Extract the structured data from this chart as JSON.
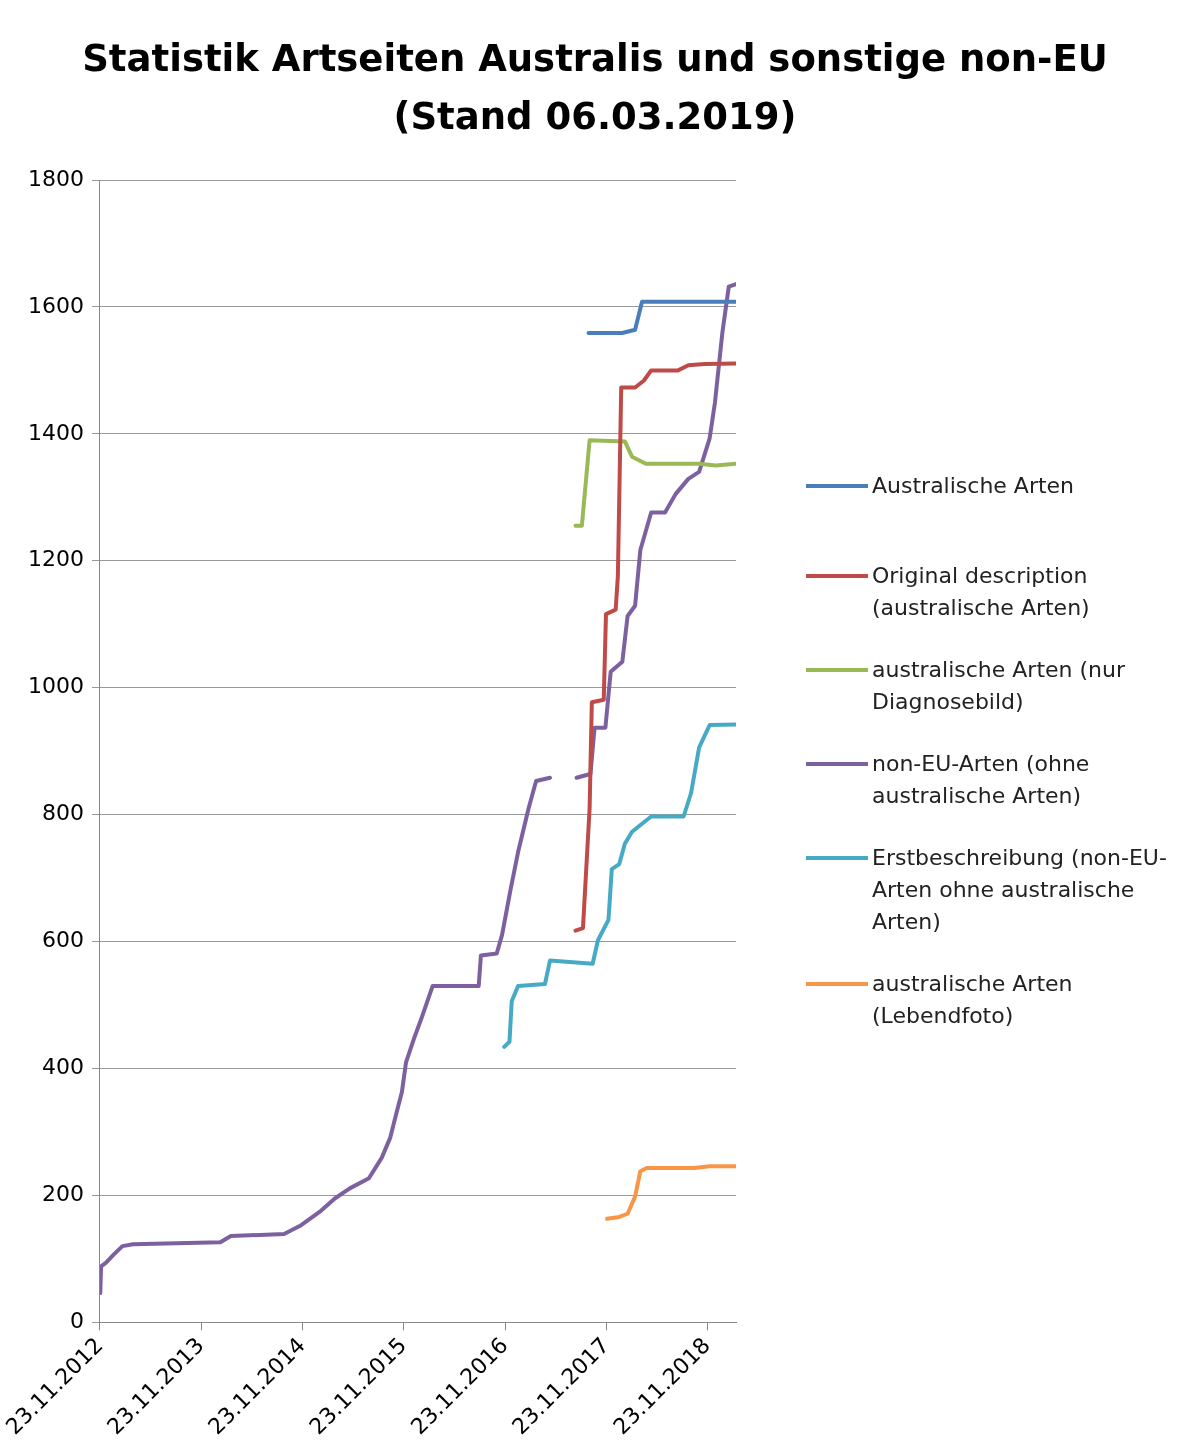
{
  "chart_data": {
    "type": "line",
    "title": "Statistik Artseiten Australis und sonstige non-EU (Stand 06.03.2019)",
    "xlim": [
      "2012-11-23",
      "2019-03-06"
    ],
    "xticks": [
      {
        "value": "2012-11-23",
        "label": "23.11.2012"
      },
      {
        "value": "2013-11-23",
        "label": "23.11.2013"
      },
      {
        "value": "2014-11-23",
        "label": "23.11.2014"
      },
      {
        "value": "2015-11-23",
        "label": "23.11.2015"
      },
      {
        "value": "2016-11-23",
        "label": "23.11.2016"
      },
      {
        "value": "2017-11-23",
        "label": "23.11.2017"
      },
      {
        "value": "2018-11-23",
        "label": "23.11.2018"
      }
    ],
    "ylim": [
      0,
      1800
    ],
    "yticks": [
      0,
      200,
      400,
      600,
      800,
      1000,
      1200,
      1400,
      1600,
      1800
    ],
    "grid": "y",
    "legend": "right",
    "marker": "none",
    "line_style": "solid",
    "series": [
      {
        "name": "Australische Arten",
        "color": "#4a7ebb",
        "x": [
          "2017-09-20",
          "2018-01-20",
          "2018-03-07",
          "2018-04-01",
          "2019-03-06"
        ],
        "values": [
          1559,
          1559,
          1564,
          1608,
          1608
        ]
      },
      {
        "name": "Original description (australische Arten)",
        "color": "#be4b48",
        "x": [
          "2017-08-04",
          "2017-08-31",
          "2017-09-24",
          "2017-10-02",
          "2017-11-14",
          "2017-11-22",
          "2017-12-27",
          "2018-01-04",
          "2018-01-16",
          "2018-03-07",
          "2018-04-08",
          "2018-05-04",
          "2018-08-09",
          "2018-09-15",
          "2018-11-13",
          "2019-03-06"
        ],
        "values": [
          617,
          621,
          810,
          977,
          981,
          1116,
          1123,
          1177,
          1473,
          1473,
          1484,
          1500,
          1500,
          1508,
          1510,
          1511
        ]
      },
      {
        "name": "australische Arten (nur Diagnosebild)",
        "color": "#98b954",
        "x": [
          "2017-08-04",
          "2017-08-27",
          "2017-09-24",
          "2018-01-29",
          "2018-02-24",
          "2018-04-15",
          "2018-10-24",
          "2018-12-24",
          "2019-03-06"
        ],
        "values": [
          1255,
          1255,
          1390,
          1388,
          1364,
          1353,
          1353,
          1350,
          1353
        ]
      },
      {
        "name": "non-EU-Arten (ohne australische Arten)",
        "color": "#7d60a0",
        "x": [
          "2012-11-24",
          "2012-11-27",
          "2012-12-15",
          "2013-01-12",
          "2013-02-12",
          "2013-03-22",
          "2014-01-31",
          "2014-03-10",
          "2014-09-18",
          "2014-11-15",
          "2015-01-30",
          "2015-03-20",
          "2015-05-13",
          "2015-07-21",
          "2015-09-05",
          "2015-10-06",
          "2015-10-29",
          "2015-11-17",
          "2015-12-02",
          "2016-01-02",
          "2016-01-29",
          "2016-03-07",
          "2016-08-20",
          "2016-08-28",
          "2016-10-24",
          "2016-11-12",
          "2016-12-13",
          "2017-01-09",
          "2017-02-16",
          "2017-03-15",
          "2017-05-04",
          "2017-06-20",
          "2017-08-08",
          "2017-09-27",
          "2017-10-12",
          "2017-11-20",
          "2017-12-09",
          "2018-01-20",
          "2018-02-08",
          "2018-03-07",
          "2018-03-26",
          "2018-05-04",
          "2018-06-23",
          "2018-07-31",
          "2018-09-15",
          "2018-10-24",
          "2018-12-01",
          "2018-12-20",
          "2019-01-16",
          "2019-02-08",
          "2019-03-06"
        ],
        "values": [
          46,
          88,
          94,
          107,
          120,
          123,
          126,
          136,
          139,
          152,
          176,
          195,
          211,
          227,
          259,
          291,
          331,
          363,
          410,
          450,
          482,
          530,
          530,
          578,
          581,
          610,
          682,
          741,
          810,
          853,
          858,
          null,
          858,
          864,
          937,
          937,
          1025,
          1041,
          1113,
          1129,
          1217,
          1276,
          1276,
          1305,
          1329,
          1340,
          1393,
          1449,
          1560,
          1632,
          1636
        ]
      },
      {
        "name": "Erstbeschreibung (non-EU-Arten ohne australische Arten)",
        "color": "#46aac5",
        "x": [
          "2016-11-20",
          "2016-12-09",
          "2016-12-17",
          "2017-01-09",
          "2017-04-16",
          "2017-05-04",
          "2017-10-05",
          "2017-10-24",
          "2017-12-01",
          "2017-12-13",
          "2018-01-09",
          "2018-01-29",
          "2018-02-24",
          "2018-05-04",
          "2018-08-29",
          "2018-09-25",
          "2018-10-24",
          "2018-12-01",
          "2019-03-06"
        ],
        "values": [
          434,
          442,
          506,
          530,
          533,
          570,
          565,
          602,
          634,
          714,
          722,
          754,
          773,
          797,
          797,
          834,
          906,
          941,
          942
        ]
      },
      {
        "name": "australische Arten (Lebendfoto)",
        "color": "#f79646",
        "x": [
          "2017-11-26",
          "2018-01-09",
          "2018-02-08",
          "2018-03-07",
          "2018-03-26",
          "2018-04-18",
          "2018-10-06",
          "2018-12-01",
          "2019-03-06"
        ],
        "values": [
          163,
          166,
          171,
          198,
          238,
          243,
          243,
          246,
          246
        ]
      }
    ]
  }
}
